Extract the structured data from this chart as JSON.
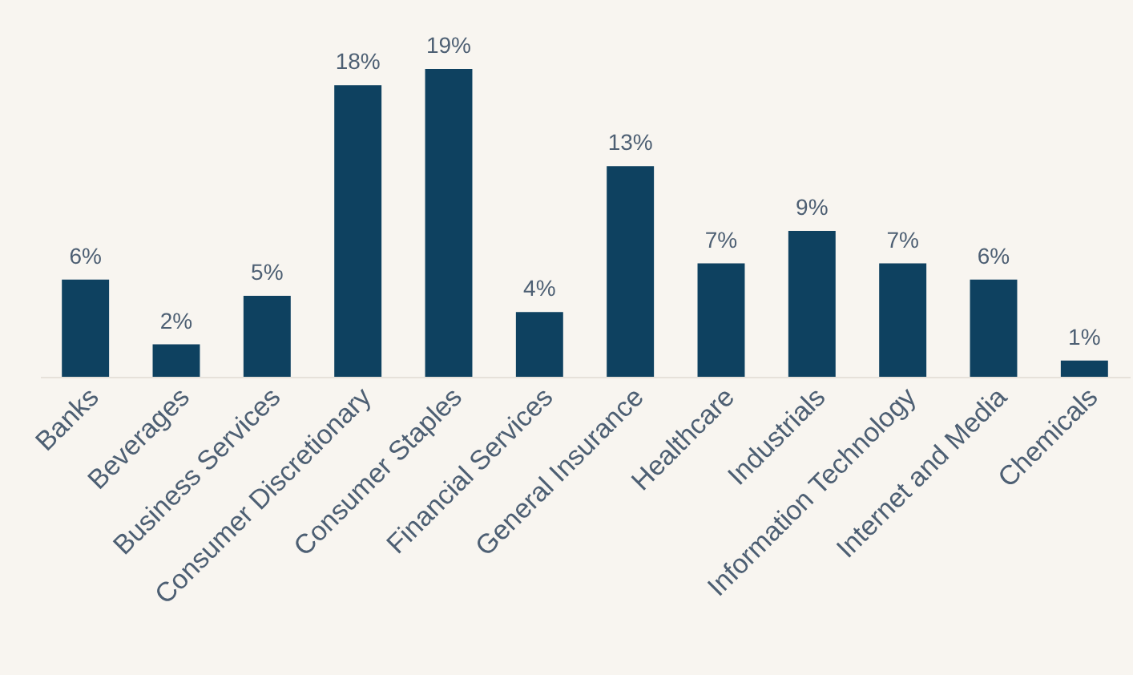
{
  "chart_data": {
    "type": "bar",
    "categories": [
      "Banks",
      "Beverages",
      "Business Services",
      "Consumer Discretionary",
      "Consumer Staples",
      "Financial Services",
      "General Insurance",
      "Healthcare",
      "Industrials",
      "Information Technology",
      "Internet and Media",
      "Chemicals"
    ],
    "values": [
      6,
      2,
      5,
      18,
      19,
      4,
      13,
      7,
      9,
      7,
      6,
      1
    ],
    "color": "#0e4160",
    "value_labels": [
      "6%",
      "2%",
      "5%",
      "18%",
      "19%",
      "4%",
      "13%",
      "7%",
      "9%",
      "7%",
      "6%",
      "1%"
    ]
  }
}
